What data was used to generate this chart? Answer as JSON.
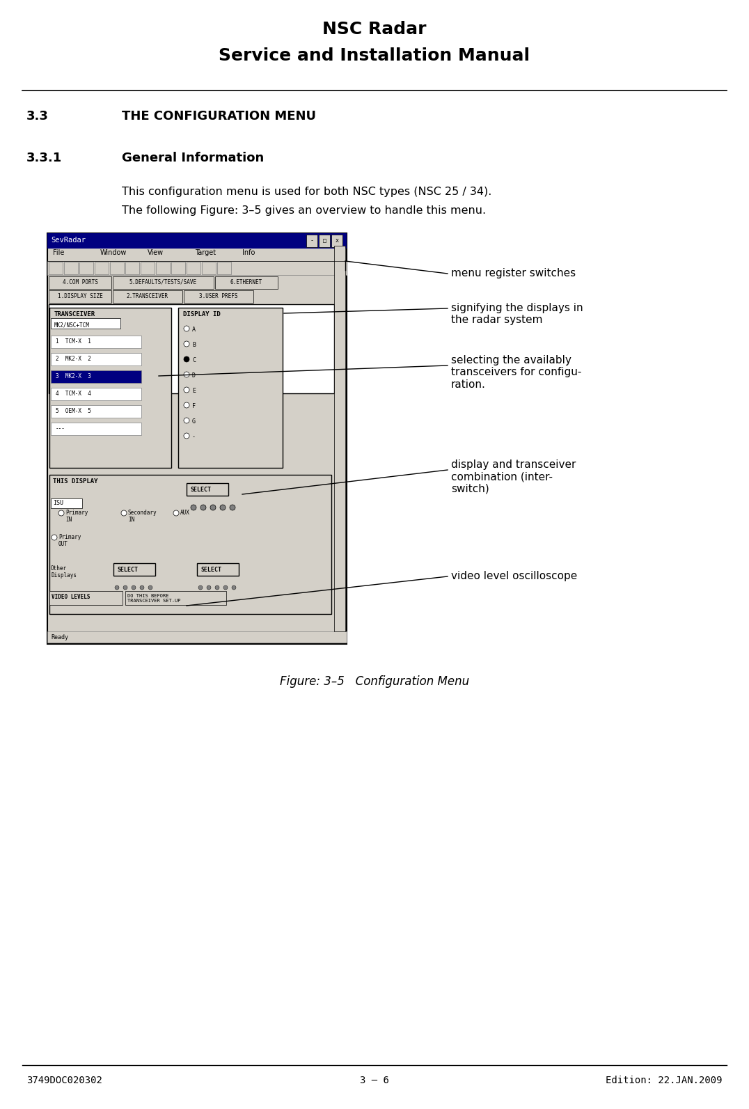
{
  "title1": "NSC Radar",
  "title2": "Service and Installation Manual",
  "section": "3.3",
  "section_title": "THE CONFIGURATION MENU",
  "subsection": "3.3.1",
  "subsection_title": "General Information",
  "body_text_1": "This configuration menu is used for both NSC types (NSC 25 / 34).",
  "body_text_2": "The following Figure: 3–5 gives an overview to handle this menu.",
  "figure_caption": "Figure: 3–5   Configuration Menu",
  "footer_left": "3749DOC020302",
  "footer_center": "3 – 6",
  "footer_right": "Edition: 22.JAN.2009",
  "annotation_1": "menu register switches",
  "annotation_2": "signifying the displays in\nthe radar system",
  "annotation_3": "selecting the availably\ntransceivers for configu-\nration.",
  "annotation_4": "display and transceiver\ncombination (inter-\nswitch)",
  "annotation_5": "video level oscilloscope",
  "bg_color": "#ffffff",
  "text_color": "#000000"
}
